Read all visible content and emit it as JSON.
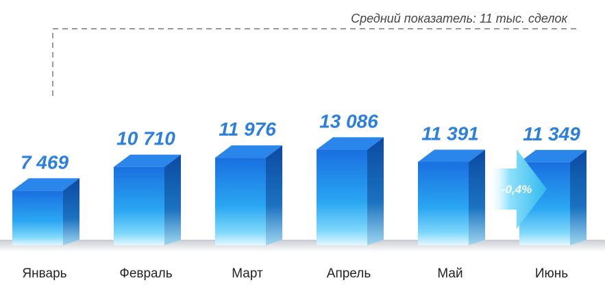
{
  "chart_data": {
    "type": "bar",
    "categories": [
      "Январь",
      "Февраль",
      "Март",
      "Апрель",
      "Май",
      "Июнь"
    ],
    "values": [
      7469,
      10710,
      11976,
      13086,
      11391,
      11349
    ],
    "value_labels": [
      "7 469",
      "10 710",
      "11 976",
      "13 086",
      "11 391",
      "11 349"
    ],
    "title": "",
    "xlabel": "",
    "ylabel": "",
    "ylim": [
      0,
      14000
    ],
    "grid": false,
    "legend": "none",
    "annotation": {
      "average_label": "Средний показатель: 11 тыс. сделок",
      "change_label": "-0,4%"
    },
    "colors": {
      "bar_top": "#1a6fe0",
      "bar_bottom": "#d6f4ff",
      "bar_side": "#0c4fa8",
      "bar_cap": "#2a86ea",
      "value_text": "#2a7fe0",
      "arrow": "#3ec6f0"
    }
  }
}
